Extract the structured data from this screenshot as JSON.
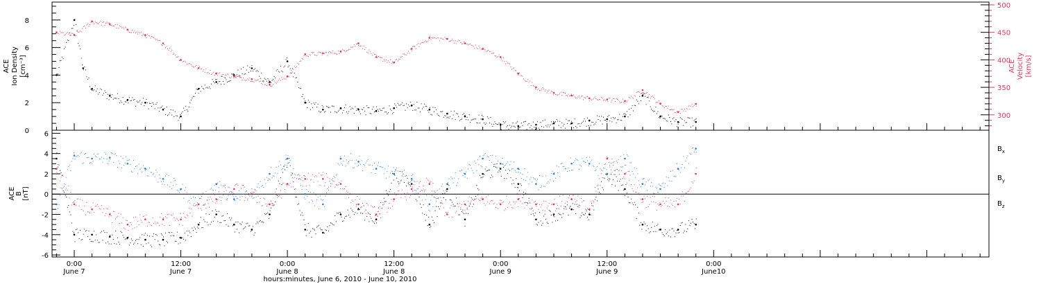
{
  "colors": {
    "density": "#000000",
    "velocity": "#e8315e",
    "bx": "#000000",
    "by": "#1e7fe0",
    "bz": "#e8315e"
  },
  "xaxis": {
    "title": "hours:minutes, June  6, 2010 - June 10, 2010",
    "range_hours": [
      -2.5,
      103
    ],
    "ticks": [
      {
        "h": 0,
        "time": "0:00",
        "date": "June 7"
      },
      {
        "h": 12,
        "time": "12:00",
        "date": "June 7"
      },
      {
        "h": 24,
        "time": "0:00",
        "date": "June 8"
      },
      {
        "h": 36,
        "time": "12:00",
        "date": "June 8"
      },
      {
        "h": 48,
        "time": "0:00",
        "date": "June 9"
      },
      {
        "h": 60,
        "time": "12:00",
        "date": "June 9"
      },
      {
        "h": 72,
        "time": "0:00",
        "date": "June10"
      }
    ]
  },
  "chart_data": [
    {
      "type": "scatter",
      "panel": "top",
      "ylabel_left": [
        "ACE",
        "Ion Density",
        "[cm⁻³]"
      ],
      "ylabel_right": [
        "ACE",
        "Velocity",
        "[km/s]"
      ],
      "ylim_left": [
        0,
        9.3
      ],
      "ylim_right": [
        272,
        505
      ],
      "yticks_left": [
        "0",
        "2",
        "4",
        "6",
        "8"
      ],
      "yticks_right": [
        "300",
        "350",
        "400",
        "450",
        "500"
      ],
      "series": [
        {
          "axis": "left",
          "x": [
            -2,
            0,
            1,
            2,
            4,
            6,
            8,
            10,
            12,
            14,
            16,
            18,
            20,
            22,
            24,
            26,
            28,
            30,
            32,
            34,
            36,
            38,
            40,
            42,
            44,
            46,
            48,
            50,
            52,
            54,
            56,
            58,
            60,
            62,
            64,
            66,
            68,
            70
          ],
          "y": [
            4.0,
            8.0,
            4.5,
            3.0,
            2.5,
            2.2,
            2.0,
            1.5,
            1.0,
            3.0,
            3.5,
            4.0,
            4.5,
            3.5,
            5.0,
            2.0,
            1.5,
            1.6,
            1.5,
            1.4,
            1.6,
            1.8,
            1.5,
            1.2,
            1.0,
            0.8,
            0.4,
            0.3,
            0.4,
            0.5,
            0.5,
            0.7,
            0.8,
            1.0,
            2.5,
            1.0,
            0.6,
            0.6
          ]
        },
        {
          "axis": "right",
          "x": [
            -2,
            0,
            2,
            4,
            6,
            8,
            10,
            12,
            14,
            16,
            18,
            20,
            22,
            24,
            26,
            28,
            30,
            32,
            34,
            36,
            38,
            40,
            42,
            44,
            46,
            48,
            50,
            52,
            54,
            56,
            58,
            60,
            62,
            64,
            66,
            68,
            70
          ],
          "y": [
            450,
            445,
            470,
            465,
            455,
            445,
            430,
            400,
            385,
            375,
            370,
            365,
            355,
            370,
            410,
            412,
            415,
            430,
            405,
            395,
            420,
            440,
            438,
            430,
            420,
            405,
            375,
            350,
            340,
            335,
            330,
            328,
            325,
            345,
            320,
            305,
            320
          ]
        }
      ]
    },
    {
      "type": "scatter",
      "panel": "bottom",
      "ylabel_left": [
        "ACE",
        "B",
        "[nT]"
      ],
      "ylim": [
        -6.2,
        6.3
      ],
      "yticks": [
        "-6",
        "-4",
        "-2",
        "0",
        "2",
        "4",
        "6"
      ],
      "zero_line": true,
      "series": [
        {
          "name": "B",
          "sub": "x",
          "x": [
            -2,
            0,
            2,
            4,
            6,
            8,
            10,
            12,
            14,
            16,
            18,
            20,
            22,
            24,
            26,
            28,
            30,
            32,
            34,
            36,
            38,
            40,
            42,
            44,
            46,
            48,
            50,
            52,
            54,
            56,
            58,
            60,
            62,
            64,
            66,
            68,
            70
          ],
          "y": [
            3.5,
            -4.0,
            -4.0,
            -4.2,
            -4.3,
            -4.5,
            -4.5,
            -4.3,
            -3.0,
            -2.0,
            -3.0,
            -3.5,
            -2.0,
            3.5,
            -3.5,
            -3.8,
            -2.0,
            -1.5,
            -2.5,
            2.0,
            1.0,
            -3.0,
            0.5,
            -2.5,
            2.0,
            2.5,
            1.0,
            -2.5,
            -2.0,
            -1.5,
            -2.0,
            2.0,
            0.5,
            -3.0,
            -3.5,
            -3.5,
            -3.0
          ]
        },
        {
          "name": "B",
          "sub": "y",
          "x": [
            -2,
            0,
            2,
            4,
            6,
            8,
            10,
            12,
            14,
            16,
            18,
            20,
            22,
            24,
            26,
            28,
            30,
            32,
            34,
            36,
            38,
            40,
            42,
            44,
            46,
            48,
            50,
            52,
            54,
            56,
            58,
            60,
            62,
            64,
            66,
            68,
            70
          ],
          "y": [
            -1.0,
            3.8,
            3.5,
            3.6,
            3.0,
            2.5,
            1.5,
            0.5,
            -1.0,
            1.0,
            -0.5,
            0.0,
            2.0,
            3.5,
            0.0,
            -1.0,
            3.5,
            3.2,
            2.5,
            2.0,
            1.5,
            -1.0,
            1.0,
            2.0,
            3.5,
            3.0,
            2.5,
            1.0,
            2.0,
            3.0,
            3.0,
            2.0,
            3.5,
            1.0,
            0.5,
            2.5,
            4.5
          ]
        },
        {
          "name": "B",
          "sub": "z",
          "x": [
            -2,
            0,
            2,
            4,
            6,
            8,
            10,
            12,
            14,
            16,
            18,
            20,
            22,
            24,
            26,
            28,
            30,
            32,
            34,
            36,
            38,
            40,
            42,
            44,
            46,
            48,
            50,
            52,
            54,
            56,
            58,
            60,
            62,
            64,
            66,
            68,
            70
          ],
          "y": [
            2.5,
            -1.0,
            -1.5,
            -2.0,
            -3.0,
            -2.5,
            -2.5,
            -2.5,
            -1.0,
            -0.5,
            0.5,
            0.0,
            -1.0,
            1.0,
            1.5,
            1.5,
            1.0,
            -1.0,
            -2.0,
            -0.5,
            0.5,
            1.0,
            -2.0,
            -1.0,
            -0.5,
            -1.0,
            -0.5,
            -1.0,
            -1.0,
            -0.5,
            -1.5,
            3.5,
            2.0,
            -0.5,
            -1.0,
            -1.0,
            2.0
          ]
        }
      ]
    }
  ]
}
